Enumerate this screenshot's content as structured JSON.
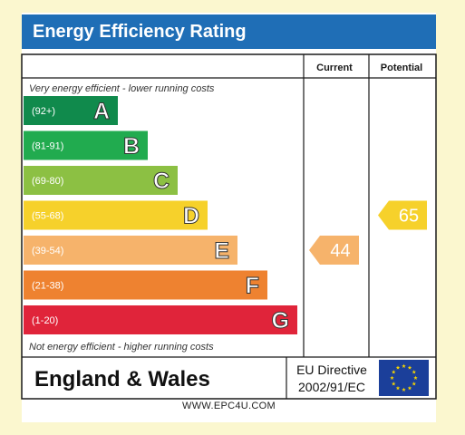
{
  "title": "Energy Efficiency Rating",
  "columns": {
    "current": "Current",
    "potential": "Potential"
  },
  "top_note": "Very energy efficient - lower running costs",
  "bottom_note": "Not energy efficient - higher running costs",
  "region": "England & Wales",
  "directive": {
    "line1": "EU Directive",
    "line2": "2002/91/EC"
  },
  "website": "WWW.EPC4U.COM",
  "chart_data": {
    "type": "bar",
    "bands": [
      {
        "range": "(92+)",
        "letter": "A",
        "color": "#108a4c"
      },
      {
        "range": "(81-91)",
        "letter": "B",
        "color": "#21ab4f"
      },
      {
        "range": "(69-80)",
        "letter": "C",
        "color": "#8cc043"
      },
      {
        "range": "(55-68)",
        "letter": "D",
        "color": "#f6d12b"
      },
      {
        "range": "(39-54)",
        "letter": "E",
        "color": "#f6b36b"
      },
      {
        "range": "(21-38)",
        "letter": "F",
        "color": "#ee8230"
      },
      {
        "range": "(1-20)",
        "letter": "G",
        "color": "#e0243a"
      }
    ],
    "current": {
      "value": 44,
      "band": "E",
      "color": "#f6b36b"
    },
    "potential": {
      "value": 65,
      "band": "D",
      "color": "#f6d12b"
    }
  },
  "colors": {
    "header": "#1f6eb6",
    "eu_flag": "#1b3f9a",
    "eu_stars": "#f5d400"
  }
}
